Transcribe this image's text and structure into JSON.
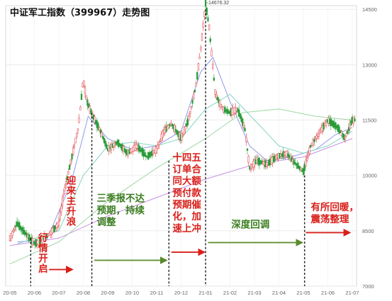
{
  "chart_data": {
    "type": "candlestick",
    "title": "中证军工指数（399967）走势图",
    "xlabel": "",
    "ylabel": "",
    "x_tick_labels": [
      "20-05",
      "20-06",
      "20-07",
      "20-08",
      "20-09",
      "20-10",
      "20-11",
      "20-12",
      "21-01",
      "21-02",
      "21-03",
      "21-04",
      "21-05",
      "21-06",
      "21-07"
    ],
    "y_ticks": [
      7000,
      8500,
      10000,
      11500,
      13000,
      14500
    ],
    "ylim": [
      7000,
      14600
    ],
    "grid": true,
    "peak_label": "14676.32",
    "peak": {
      "x": "21-01",
      "value": 14676.32
    },
    "close_path": [
      {
        "x": 0.0,
        "y": 8300
      },
      {
        "x": 0.3,
        "y": 8700
      },
      {
        "x": 0.6,
        "y": 8450
      },
      {
        "x": 1.0,
        "y": 8150
      },
      {
        "x": 1.3,
        "y": 8250
      },
      {
        "x": 1.6,
        "y": 8400
      },
      {
        "x": 2.0,
        "y": 8700
      },
      {
        "x": 2.2,
        "y": 9500
      },
      {
        "x": 2.5,
        "y": 10400
      },
      {
        "x": 2.8,
        "y": 11300
      },
      {
        "x": 3.0,
        "y": 12600
      },
      {
        "x": 3.15,
        "y": 12000
      },
      {
        "x": 3.4,
        "y": 11600
      },
      {
        "x": 3.7,
        "y": 11200
      },
      {
        "x": 4.0,
        "y": 10700
      },
      {
        "x": 4.4,
        "y": 10900
      },
      {
        "x": 4.8,
        "y": 10600
      },
      {
        "x": 5.2,
        "y": 10800
      },
      {
        "x": 5.6,
        "y": 10500
      },
      {
        "x": 6.0,
        "y": 10700
      },
      {
        "x": 6.3,
        "y": 11200
      },
      {
        "x": 6.6,
        "y": 11400
      },
      {
        "x": 7.0,
        "y": 11000
      },
      {
        "x": 7.3,
        "y": 11500
      },
      {
        "x": 7.6,
        "y": 12400
      },
      {
        "x": 7.8,
        "y": 13400
      },
      {
        "x": 8.0,
        "y": 14676
      },
      {
        "x": 8.15,
        "y": 14000
      },
      {
        "x": 8.4,
        "y": 12200
      },
      {
        "x": 8.7,
        "y": 11800
      },
      {
        "x": 9.0,
        "y": 11700
      },
      {
        "x": 9.3,
        "y": 11800
      },
      {
        "x": 9.6,
        "y": 11300
      },
      {
        "x": 9.8,
        "y": 10200
      },
      {
        "x": 10.1,
        "y": 10400
      },
      {
        "x": 10.5,
        "y": 10300
      },
      {
        "x": 10.9,
        "y": 10500
      },
      {
        "x": 11.3,
        "y": 10600
      },
      {
        "x": 11.7,
        "y": 10300
      },
      {
        "x": 12.0,
        "y": 10100
      },
      {
        "x": 12.3,
        "y": 10800
      },
      {
        "x": 12.7,
        "y": 11200
      },
      {
        "x": 13.0,
        "y": 11500
      },
      {
        "x": 13.4,
        "y": 11300
      },
      {
        "x": 13.7,
        "y": 11000
      },
      {
        "x": 14.0,
        "y": 11500
      }
    ],
    "moving_averages": [
      {
        "color": "#8a96e8",
        "values": [
          {
            "x": 0.3,
            "y": 8200
          },
          {
            "x": 1.5,
            "y": 8250
          },
          {
            "x": 2.5,
            "y": 9800
          },
          {
            "x": 3.2,
            "y": 11600
          },
          {
            "x": 4.0,
            "y": 11000
          },
          {
            "x": 5.0,
            "y": 10700
          },
          {
            "x": 6.0,
            "y": 10800
          },
          {
            "x": 7.0,
            "y": 11200
          },
          {
            "x": 7.8,
            "y": 12800
          },
          {
            "x": 8.3,
            "y": 13200
          },
          {
            "x": 9.0,
            "y": 12000
          },
          {
            "x": 9.8,
            "y": 10800
          },
          {
            "x": 10.5,
            "y": 10400
          },
          {
            "x": 11.5,
            "y": 10500
          },
          {
            "x": 12.5,
            "y": 10700
          },
          {
            "x": 13.3,
            "y": 11100
          },
          {
            "x": 14.0,
            "y": 11300
          }
        ]
      },
      {
        "color": "#7ed3c0",
        "values": [
          {
            "x": 0.3,
            "y": 8150
          },
          {
            "x": 2.0,
            "y": 8500
          },
          {
            "x": 3.0,
            "y": 10000
          },
          {
            "x": 4.0,
            "y": 10800
          },
          {
            "x": 5.0,
            "y": 10900
          },
          {
            "x": 6.0,
            "y": 10800
          },
          {
            "x": 7.0,
            "y": 11000
          },
          {
            "x": 8.0,
            "y": 11800
          },
          {
            "x": 9.0,
            "y": 12200
          },
          {
            "x": 10.0,
            "y": 11500
          },
          {
            "x": 11.0,
            "y": 10800
          },
          {
            "x": 12.0,
            "y": 10600
          },
          {
            "x": 13.0,
            "y": 10800
          },
          {
            "x": 14.0,
            "y": 11200
          }
        ]
      },
      {
        "color": "#c48ae6",
        "values": [
          {
            "x": 0.0,
            "y": 8100
          },
          {
            "x": 2.0,
            "y": 8300
          },
          {
            "x": 4.0,
            "y": 8900
          },
          {
            "x": 6.0,
            "y": 9400
          },
          {
            "x": 8.0,
            "y": 9900
          },
          {
            "x": 10.0,
            "y": 10300
          },
          {
            "x": 12.0,
            "y": 10500
          },
          {
            "x": 14.0,
            "y": 11000
          }
        ]
      },
      {
        "color": "#9ad4a0",
        "values": [
          {
            "x": 0.0,
            "y": 7600
          },
          {
            "x": 2.0,
            "y": 8200
          },
          {
            "x": 4.0,
            "y": 9300
          },
          {
            "x": 6.0,
            "y": 10200
          },
          {
            "x": 8.0,
            "y": 11000
          },
          {
            "x": 9.5,
            "y": 11700
          },
          {
            "x": 11.0,
            "y": 11800
          },
          {
            "x": 12.5,
            "y": 11600
          },
          {
            "x": 14.0,
            "y": 11500
          }
        ]
      }
    ],
    "phase_dividers": [
      {
        "x": 0.85,
        "bottom": 8300
      },
      {
        "x": 3.35,
        "bottom": 11700
      },
      {
        "x": 6.5,
        "bottom": 10400
      },
      {
        "x": 8.0,
        "bottom": 14500
      },
      {
        "x": 12.05,
        "bottom": 10000
      }
    ],
    "phase_arrows": [
      {
        "x1": 1.6,
        "x2": 2.55,
        "y": 7450,
        "color": "#d9201b"
      },
      {
        "x1": 3.45,
        "x2": 6.4,
        "y": 7700,
        "color": "#5a8a2a"
      },
      {
        "x1": 6.6,
        "x2": 7.95,
        "y": 7920,
        "color": "#d9201b"
      },
      {
        "x1": 8.1,
        "x2": 11.95,
        "y": 8180,
        "color": "#5a8a2a"
      },
      {
        "x1": 12.1,
        "x2": 13.9,
        "y": 8450,
        "color": "#d9201b"
      }
    ],
    "annotations": [
      {
        "text": "行情开启",
        "color": "red",
        "orientation": "vertical",
        "x": 1.3,
        "y": 8450
      },
      {
        "text": "迎来主升浪",
        "color": "red",
        "orientation": "vertical",
        "x": 2.45,
        "y": 10000
      },
      {
        "text": "三季报不达",
        "color": "green",
        "orientation": "horizontal",
        "x": 3.55,
        "y": 9290
      },
      {
        "text": "预期，持续",
        "color": "green",
        "orientation": "horizontal",
        "x": 3.55,
        "y": 8970
      },
      {
        "text": "调整",
        "color": "green",
        "orientation": "horizontal",
        "x": 3.55,
        "y": 8650
      },
      {
        "text": "十四五",
        "color": "red",
        "orientation": "horizontal",
        "x": 6.65,
        "y": 10400
      },
      {
        "text": "订单合",
        "color": "red",
        "orientation": "horizontal",
        "x": 6.65,
        "y": 10080
      },
      {
        "text": "同大额",
        "color": "red",
        "orientation": "horizontal",
        "x": 6.65,
        "y": 9760
      },
      {
        "text": "预付款",
        "color": "red",
        "orientation": "horizontal",
        "x": 6.65,
        "y": 9440
      },
      {
        "text": "预期催",
        "color": "red",
        "orientation": "horizontal",
        "x": 6.65,
        "y": 9120
      },
      {
        "text": "化，加",
        "color": "red",
        "orientation": "horizontal",
        "x": 6.65,
        "y": 8800
      },
      {
        "text": "速上冲",
        "color": "red",
        "orientation": "horizontal",
        "x": 6.65,
        "y": 8480
      },
      {
        "text": "深度回调",
        "color": "green",
        "orientation": "horizontal",
        "x": 9.05,
        "y": 8580
      },
      {
        "text": "有所回暖，",
        "color": "red",
        "orientation": "horizontal",
        "x": 12.3,
        "y": 9050
      },
      {
        "text": "震荡整理",
        "color": "red",
        "orientation": "horizontal",
        "x": 12.3,
        "y": 8730
      }
    ],
    "colors": {
      "up": "#e0393e",
      "down": "#2a9d3a",
      "grid": "#e6e6e6"
    }
  }
}
